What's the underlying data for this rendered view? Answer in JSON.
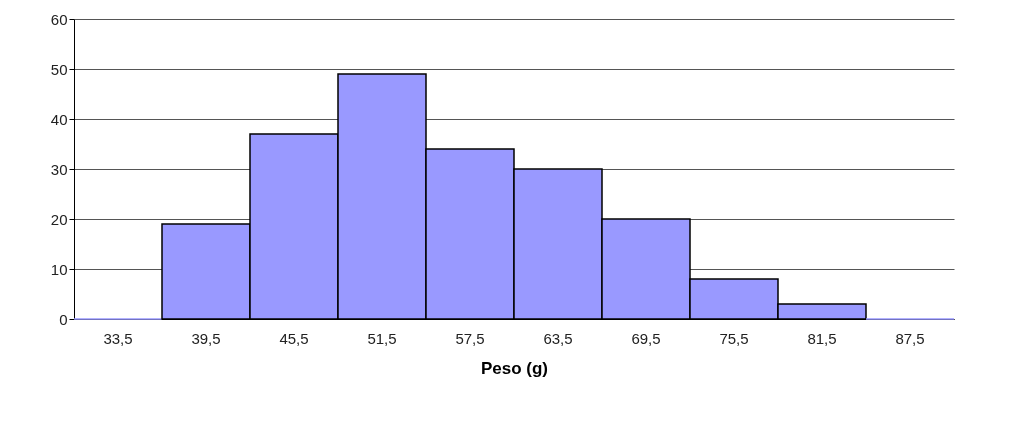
{
  "chart_data": {
    "type": "bar",
    "xlabel": "Peso (g)",
    "categories": [
      "33,5",
      "39,5",
      "45,5",
      "51,5",
      "57,5",
      "63,5",
      "69,5",
      "75,5",
      "81,5",
      "87,5"
    ],
    "values": [
      0,
      19,
      37,
      49,
      34,
      30,
      20,
      8,
      3,
      0
    ],
    "color": "#9999ff",
    "ylim": [
      0,
      60
    ],
    "yticks": [
      0,
      10,
      20,
      30,
      40,
      50,
      60
    ],
    "grid": "y"
  }
}
